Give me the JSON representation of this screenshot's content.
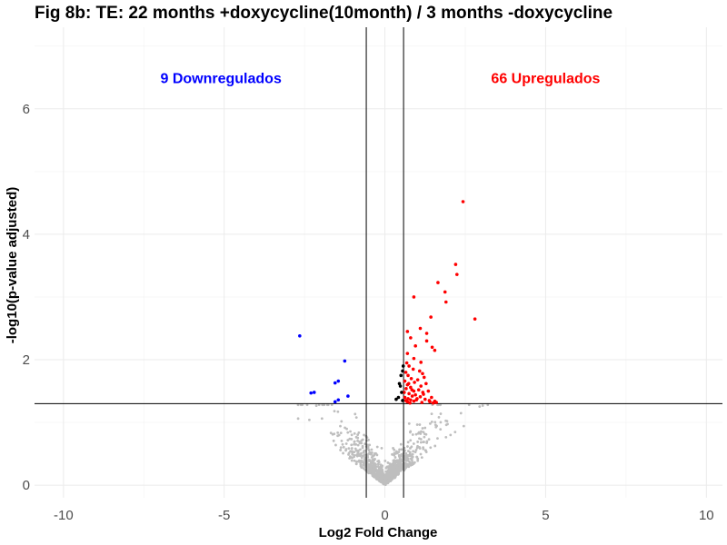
{
  "chart_data": {
    "type": "scatter",
    "title": "Fig 8b: TE: 22 months +doxycycline(10month) / 3 months -doxycycline",
    "xlabel": "Log2 Fold Change",
    "ylabel": "-log10(p-value adjusted)",
    "xlim": [
      -10.9,
      10.5
    ],
    "ylim": [
      -0.2,
      7.3
    ],
    "x_ticks": [
      -10,
      -5,
      0,
      5,
      10
    ],
    "y_ticks": [
      0,
      2,
      4,
      6
    ],
    "x_tick_labels": [
      "-10",
      "-5",
      "0",
      "5",
      "10"
    ],
    "y_tick_labels": [
      "0",
      "2",
      "4",
      "6"
    ],
    "grid": true,
    "thresholds": {
      "x": [
        -0.58,
        0.58
      ],
      "y": 1.3
    },
    "annotations": [
      {
        "text": "9 Downregulados",
        "x": -5.1,
        "y": 6.5,
        "color": "#0000ff"
      },
      {
        "text": "66 Upregulados",
        "x": 5.0,
        "y": 6.5,
        "color": "#ff0000"
      }
    ],
    "colors": {
      "up": "#ff0000",
      "down": "#0000ff",
      "ns": "#bebebe",
      "sig_low_fc": "#000000"
    },
    "series": [
      {
        "color": "#ff0000",
        "points": [
          [
            2.43,
            4.52
          ],
          [
            2.2,
            3.52
          ],
          [
            2.24,
            3.36
          ],
          [
            1.65,
            3.23
          ],
          [
            1.87,
            3.08
          ],
          [
            1.9,
            2.92
          ],
          [
            0.9,
            3.0
          ],
          [
            2.8,
            2.65
          ],
          [
            1.43,
            2.68
          ],
          [
            0.7,
            2.45
          ],
          [
            1.1,
            2.5
          ],
          [
            1.3,
            2.42
          ],
          [
            0.8,
            2.35
          ],
          [
            1.3,
            2.3
          ],
          [
            0.95,
            2.22
          ],
          [
            1.47,
            2.2
          ],
          [
            1.55,
            2.15
          ],
          [
            0.7,
            2.1
          ],
          [
            0.9,
            2.02
          ],
          [
            1.12,
            1.96
          ],
          [
            0.68,
            1.95
          ],
          [
            0.75,
            1.9
          ],
          [
            0.88,
            1.85
          ],
          [
            1.08,
            1.82
          ],
          [
            0.65,
            1.8
          ],
          [
            1.17,
            1.78
          ],
          [
            0.72,
            1.75
          ],
          [
            1.22,
            1.72
          ],
          [
            0.82,
            1.7
          ],
          [
            1.02,
            1.68
          ],
          [
            0.62,
            1.66
          ],
          [
            0.92,
            1.64
          ],
          [
            1.28,
            1.62
          ],
          [
            0.7,
            1.6
          ],
          [
            1.12,
            1.58
          ],
          [
            0.8,
            1.56
          ],
          [
            0.66,
            1.54
          ],
          [
            1.05,
            1.52
          ],
          [
            0.9,
            1.5
          ],
          [
            1.35,
            1.5
          ],
          [
            0.6,
            1.48
          ],
          [
            0.75,
            1.46
          ],
          [
            1.2,
            1.45
          ],
          [
            0.95,
            1.44
          ],
          [
            0.85,
            1.42
          ],
          [
            1.1,
            1.41
          ],
          [
            0.62,
            1.4
          ],
          [
            1.45,
            1.4
          ],
          [
            0.72,
            1.38
          ],
          [
            1.0,
            1.38
          ],
          [
            1.25,
            1.37
          ],
          [
            0.8,
            1.36
          ],
          [
            0.65,
            1.35
          ],
          [
            1.55,
            1.34
          ],
          [
            0.9,
            1.34
          ],
          [
            1.4,
            1.33
          ],
          [
            0.7,
            1.33
          ],
          [
            1.15,
            1.32
          ],
          [
            1.6,
            1.32
          ],
          [
            0.78,
            1.31
          ],
          [
            1.5,
            1.31
          ],
          [
            0.98,
            1.36
          ],
          [
            0.74,
            1.62
          ],
          [
            0.84,
            1.52
          ],
          [
            1.18,
            1.48
          ],
          [
            1.38,
            1.35
          ]
        ]
      },
      {
        "color": "#0000ff",
        "points": [
          [
            -2.65,
            2.38
          ],
          [
            -1.25,
            1.98
          ],
          [
            -1.45,
            1.66
          ],
          [
            -1.55,
            1.63
          ],
          [
            -1.15,
            1.42
          ],
          [
            -2.2,
            1.48
          ],
          [
            -2.3,
            1.47
          ],
          [
            -1.55,
            1.33
          ],
          [
            -1.45,
            1.36
          ]
        ]
      },
      {
        "color": "#000000",
        "points": [
          [
            0.5,
            1.75
          ],
          [
            0.55,
            1.82
          ],
          [
            0.48,
            1.58
          ],
          [
            0.52,
            1.48
          ],
          [
            0.42,
            1.4
          ],
          [
            0.55,
            1.35
          ],
          [
            0.35,
            1.37
          ],
          [
            0.57,
            1.9
          ],
          [
            0.45,
            1.62
          ]
        ]
      }
    ]
  }
}
